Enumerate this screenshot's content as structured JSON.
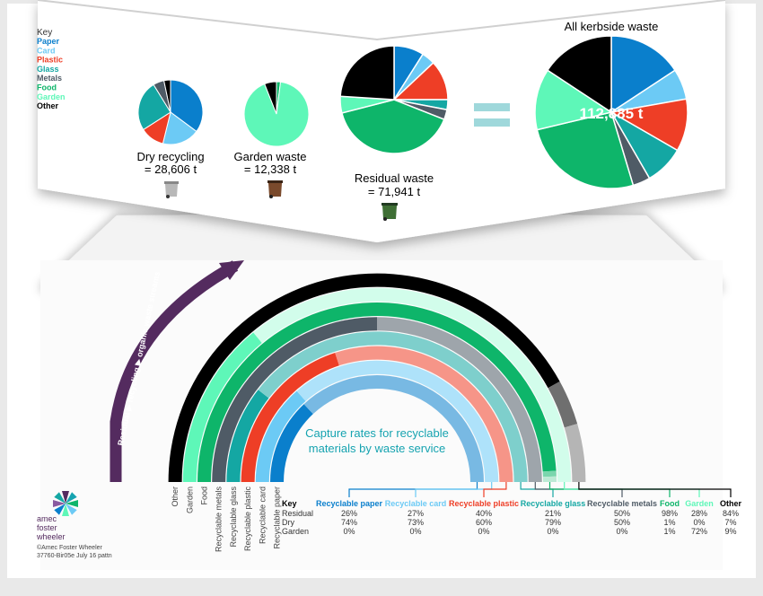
{
  "colors": {
    "Paper": "#0a7fcc",
    "Card": "#6ccaf5",
    "Plastic": "#ee3e26",
    "Glass": "#14a7a3",
    "Metals": "#4f5b66",
    "Food": "#0eb56a",
    "Garden": "#5ef7b8",
    "Other": "#000000",
    "title_teal": "#16a3b0",
    "arrow": "#542b5f"
  },
  "top_key": {
    "title": "Key",
    "items": [
      "Paper",
      "Card",
      "Plastic",
      "Glass",
      "Metals",
      "Food",
      "Garden",
      "Other"
    ]
  },
  "chart_data": [
    {
      "type": "pie",
      "name": "Dry recycling",
      "label_line1": "Dry recycling",
      "label_line2": "= 28,606 t",
      "categories": [
        "Paper",
        "Card",
        "Plastic",
        "Glass",
        "Metals",
        "Food",
        "Garden",
        "Other"
      ],
      "values": [
        32,
        17,
        11,
        23,
        5,
        0,
        0,
        3
      ],
      "bin_icon": "grey-wheelie-bin-icon"
    },
    {
      "type": "pie",
      "name": "Garden waste",
      "label_line1": "Garden waste",
      "label_line2": "= 12,338 t",
      "categories": [
        "Paper",
        "Card",
        "Plastic",
        "Glass",
        "Metals",
        "Food",
        "Garden",
        "Other"
      ],
      "values": [
        0,
        0,
        0,
        0,
        0,
        2,
        92,
        6
      ],
      "bin_icon": "brown-wheelie-bin-icon"
    },
    {
      "type": "pie",
      "name": "Residual waste",
      "label_line1": "Residual waste",
      "label_line2": "= 71,941 t",
      "categories": [
        "Paper",
        "Card",
        "Plastic",
        "Glass",
        "Metals",
        "Food",
        "Garden",
        "Other"
      ],
      "values": [
        9,
        4,
        12,
        3,
        3,
        40,
        5,
        24
      ],
      "bin_icon": "green-wheelie-bin-icon"
    },
    {
      "type": "pie",
      "name": "All kerbside waste",
      "title": "All kerbside waste",
      "center_label": "112,885 t",
      "categories": [
        "Paper",
        "Card",
        "Plastic",
        "Glass",
        "Metals",
        "Food",
        "Garden",
        "Other"
      ],
      "values": [
        17,
        7,
        12,
        9,
        4,
        28,
        14,
        17
      ]
    },
    {
      "type": "table",
      "name": "Capture rates",
      "title_line1": "Capture rates for recyclable",
      "title_line2": "materials by waste service",
      "key_label": "Key",
      "streams": [
        "Residual",
        "Dry",
        "Garden"
      ],
      "columns": [
        "Recyclable paper",
        "Recyclable card",
        "Recyclable plastic",
        "Recyclable glass",
        "Recyclable metals",
        "Food",
        "Garden",
        "Other"
      ],
      "column_keys": [
        "Paper",
        "Card",
        "Plastic",
        "Glass",
        "Metals",
        "Food",
        "Garden",
        "Other"
      ],
      "values": {
        "Residual": [
          "26%",
          "27%",
          "40%",
          "21%",
          "50%",
          "98%",
          "28%",
          "84%"
        ],
        "Dry": [
          "74%",
          "73%",
          "60%",
          "79%",
          "50%",
          "1%",
          "0%",
          "7%"
        ],
        "Garden": [
          "0%",
          "0%",
          "0%",
          "0%",
          "0%",
          "1%",
          "72%",
          "9%"
        ]
      },
      "arc_labels": [
        "Other",
        "Garden",
        "Food",
        "Recyclable metals",
        "Recyclable glass",
        "Recyclable plastic",
        "Recyclable card",
        "Recyclable paper"
      ],
      "arrow_text": [
        "Residual",
        "▶",
        "recycling",
        "▶",
        "organic waste streams"
      ]
    }
  ],
  "equals_sign": "=",
  "footer": {
    "logo_line1": "amec",
    "logo_line2": "foster",
    "logo_line3": "wheeler",
    "copyright": "©Amec Foster Wheeler",
    "ref": "37760-Bir05e July 16 pattn"
  }
}
